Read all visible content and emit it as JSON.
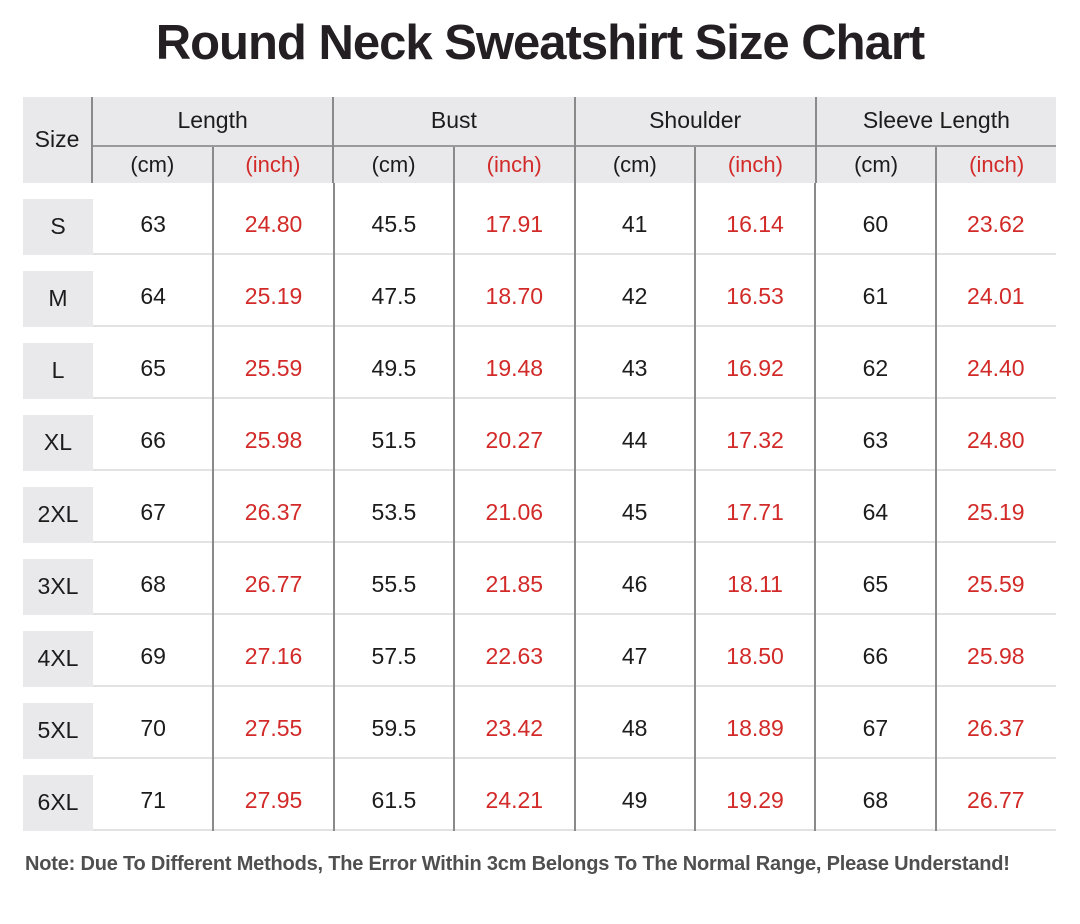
{
  "title": "Round Neck Sweatshirt Size Chart",
  "note": "Note: Due To Different Methods, The Error Within 3cm Belongs To The Normal Range, Please Understand!",
  "colors": {
    "accent_red": "#d22a28",
    "header_bg": "#e9e9eb",
    "grid_dark": "#8a8a8a",
    "grid_light": "#e2e2e2"
  },
  "table": {
    "size_header": "Size",
    "groups": [
      {
        "label": "Length",
        "units": [
          "(cm)",
          "(inch)"
        ]
      },
      {
        "label": "Bust",
        "units": [
          "(cm)",
          "(inch)"
        ]
      },
      {
        "label": "Shoulder",
        "units": [
          "(cm)",
          "(inch)"
        ]
      },
      {
        "label": "Sleeve Length",
        "units": [
          "(cm)",
          "(inch)"
        ]
      }
    ],
    "rows": [
      {
        "size": "S",
        "cells": [
          "63",
          "24.80",
          "45.5",
          "17.91",
          "41",
          "16.14",
          "60",
          "23.62"
        ]
      },
      {
        "size": "M",
        "cells": [
          "64",
          "25.19",
          "47.5",
          "18.70",
          "42",
          "16.53",
          "61",
          "24.01"
        ]
      },
      {
        "size": "L",
        "cells": [
          "65",
          "25.59",
          "49.5",
          "19.48",
          "43",
          "16.92",
          "62",
          "24.40"
        ]
      },
      {
        "size": "XL",
        "cells": [
          "66",
          "25.98",
          "51.5",
          "20.27",
          "44",
          "17.32",
          "63",
          "24.80"
        ]
      },
      {
        "size": "2XL",
        "cells": [
          "67",
          "26.37",
          "53.5",
          "21.06",
          "45",
          "17.71",
          "64",
          "25.19"
        ]
      },
      {
        "size": "3XL",
        "cells": [
          "68",
          "26.77",
          "55.5",
          "21.85",
          "46",
          "18.11",
          "65",
          "25.59"
        ]
      },
      {
        "size": "4XL",
        "cells": [
          "69",
          "27.16",
          "57.5",
          "22.63",
          "47",
          "18.50",
          "66",
          "25.98"
        ]
      },
      {
        "size": "5XL",
        "cells": [
          "70",
          "27.55",
          "59.5",
          "23.42",
          "48",
          "18.89",
          "67",
          "26.37"
        ]
      },
      {
        "size": "6XL",
        "cells": [
          "71",
          "27.95",
          "61.5",
          "24.21",
          "49",
          "19.29",
          "68",
          "26.77"
        ]
      }
    ]
  },
  "chart_data": {
    "type": "table",
    "title": "Round Neck Sweatshirt Size Chart",
    "columns": [
      "Size",
      "Length (cm)",
      "Length (inch)",
      "Bust (cm)",
      "Bust (inch)",
      "Shoulder (cm)",
      "Shoulder (inch)",
      "Sleeve Length (cm)",
      "Sleeve Length (inch)"
    ],
    "rows": [
      [
        "S",
        63,
        24.8,
        45.5,
        17.91,
        41,
        16.14,
        60,
        23.62
      ],
      [
        "M",
        64,
        25.19,
        47.5,
        18.7,
        42,
        16.53,
        61,
        24.01
      ],
      [
        "L",
        65,
        25.59,
        49.5,
        19.48,
        43,
        16.92,
        62,
        24.4
      ],
      [
        "XL",
        66,
        25.98,
        51.5,
        20.27,
        44,
        17.32,
        63,
        24.8
      ],
      [
        "2XL",
        67,
        26.37,
        53.5,
        21.06,
        45,
        17.71,
        64,
        25.19
      ],
      [
        "3XL",
        68,
        26.77,
        55.5,
        21.85,
        46,
        18.11,
        65,
        25.59
      ],
      [
        "4XL",
        69,
        27.16,
        57.5,
        22.63,
        47,
        18.5,
        66,
        25.98
      ],
      [
        "5XL",
        70,
        27.55,
        59.5,
        23.42,
        48,
        18.89,
        67,
        26.37
      ],
      [
        "6XL",
        71,
        27.95,
        61.5,
        24.21,
        49,
        19.29,
        68,
        26.77
      ]
    ],
    "note": "Note: Due To Different Methods, The Error Within 3cm Belongs To The Normal Range, Please Understand!",
    "style": {
      "inch_columns_color": "#d22a28",
      "cm_columns_color": "#1c1c1c",
      "header_background": "#e9e9eb"
    }
  }
}
